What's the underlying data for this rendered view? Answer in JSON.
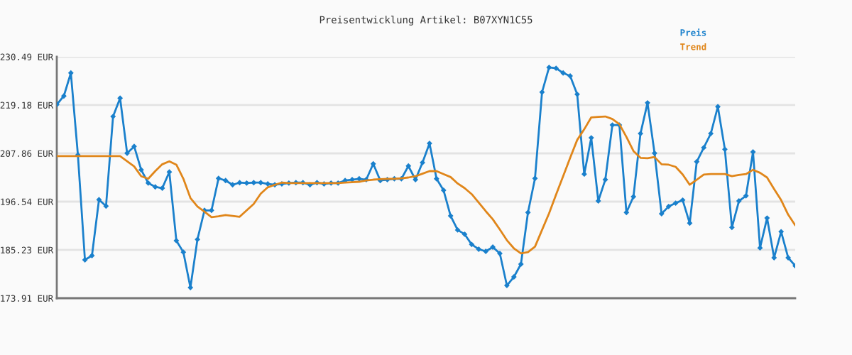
{
  "chart_data": {
    "type": "line",
    "title": "Preisentwicklung Artikel: B07XYN1C55",
    "categories": [
      null,
      null,
      null,
      null,
      null,
      null,
      null,
      null,
      null,
      null,
      null,
      null,
      null,
      null,
      null,
      null,
      null,
      null,
      null,
      null,
      null,
      null,
      null,
      null,
      null,
      null,
      null,
      null,
      null,
      null,
      null,
      null,
      null,
      null,
      null,
      null,
      null,
      null,
      null,
      null,
      null,
      null,
      null,
      null,
      null,
      null,
      null,
      null,
      null,
      null,
      null,
      null,
      null,
      null,
      null,
      null,
      null,
      null,
      null,
      null,
      null,
      null,
      null,
      null,
      null,
      null,
      null,
      null,
      null,
      null,
      null,
      null,
      null,
      null,
      null,
      null,
      null,
      null,
      null,
      null,
      null,
      null,
      null,
      null,
      null,
      null,
      null,
      null,
      null,
      null,
      null,
      null,
      null,
      null,
      null,
      null,
      null,
      null,
      null,
      null,
      null,
      null,
      null,
      null,
      null,
      null
    ],
    "series": [
      {
        "name": "Preis",
        "color": "#1a80cc",
        "marker": "diamond",
        "values": [
          219.3,
          221.3,
          226.7,
          207.5,
          182.9,
          183.9,
          197.0,
          195.5,
          216.5,
          220.8,
          207.9,
          209.5,
          204.0,
          200.9,
          200.0,
          199.7,
          203.5,
          187.4,
          184.7,
          176.4,
          187.7,
          194.5,
          194.5,
          202.0,
          201.5,
          200.5,
          201.0,
          200.9,
          201.0,
          201.0,
          200.7,
          200.5,
          200.7,
          200.9,
          201.0,
          201.0,
          200.5,
          201.0,
          200.7,
          200.9,
          200.9,
          201.5,
          201.7,
          201.9,
          201.7,
          205.4,
          201.5,
          201.7,
          201.9,
          201.9,
          204.9,
          201.7,
          205.7,
          210.2,
          201.9,
          199.2,
          193.2,
          189.9,
          188.9,
          186.5,
          185.4,
          184.9,
          185.9,
          184.4,
          176.9,
          178.9,
          181.9,
          194.0,
          202.0,
          222.2,
          228.0,
          227.8,
          226.7,
          226.0,
          221.7,
          203.0,
          211.5,
          196.7,
          201.7,
          214.5,
          214.5,
          194.0,
          197.7,
          212.5,
          219.7,
          207.9,
          193.7,
          195.4,
          196.2,
          196.9,
          191.5,
          205.9,
          209.2,
          212.5,
          218.8,
          208.8,
          190.5,
          196.7,
          197.9,
          208.2,
          185.7,
          192.7,
          183.4,
          189.5,
          183.4,
          181.5
        ]
      },
      {
        "name": "Trend",
        "color": "#e0861a",
        "marker": "none",
        "values": [
          207.2,
          207.2,
          207.2,
          207.2,
          207.2,
          207.2,
          207.2,
          207.2,
          207.2,
          207.2,
          206.0,
          204.8,
          202.5,
          201.9,
          203.7,
          205.3,
          206.0,
          205.2,
          201.9,
          197.4,
          195.4,
          194.2,
          192.9,
          193.1,
          193.4,
          193.2,
          193.0,
          194.5,
          196.0,
          198.4,
          199.9,
          200.5,
          201.0,
          200.9,
          200.9,
          200.9,
          200.9,
          200.9,
          200.9,
          200.9,
          200.9,
          201.0,
          201.1,
          201.2,
          201.5,
          201.7,
          201.8,
          201.9,
          201.9,
          202.0,
          202.2,
          202.5,
          203.1,
          203.7,
          203.7,
          203.0,
          202.3,
          200.8,
          199.7,
          198.3,
          196.3,
          194.3,
          192.4,
          190.0,
          187.5,
          185.6,
          184.4,
          184.7,
          186.0,
          189.9,
          193.8,
          198.2,
          202.5,
          206.8,
          211.0,
          213.5,
          216.3,
          216.4,
          216.5,
          215.9,
          214.7,
          211.7,
          208.4,
          206.8,
          206.7,
          207.0,
          205.3,
          205.2,
          204.7,
          202.9,
          200.5,
          201.7,
          202.9,
          203.0,
          203.0,
          203.0,
          202.5,
          202.8,
          203.0,
          204.0,
          203.3,
          202.2,
          199.5,
          196.9,
          193.5,
          191.0
        ]
      }
    ],
    "ylim": [
      173.91,
      230.49
    ],
    "yticks": [
      {
        "value": 173.91,
        "label": "173.91 EUR"
      },
      {
        "value": 185.23,
        "label": "185.23 EUR"
      },
      {
        "value": 196.54,
        "label": "196.54 EUR"
      },
      {
        "value": 207.86,
        "label": "207.86 EUR"
      },
      {
        "value": 219.18,
        "label": "219.18 EUR"
      },
      {
        "value": 230.49,
        "label": "230.49 EUR"
      }
    ],
    "grid": "y",
    "legend": "top right",
    "tick_labels": "y"
  }
}
